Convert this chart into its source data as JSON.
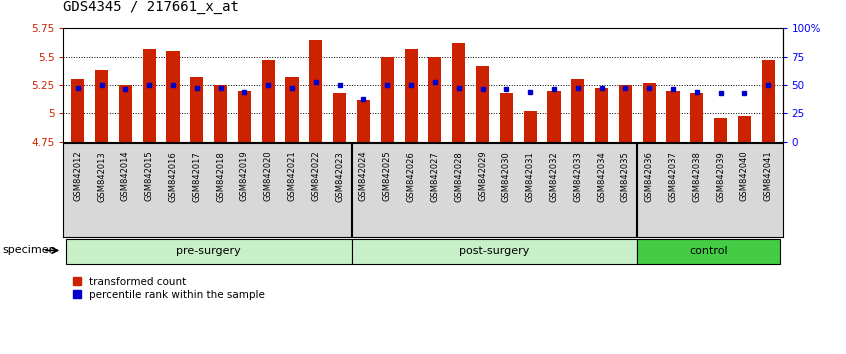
{
  "title": "GDS4345 / 217661_x_at",
  "samples": [
    "GSM842012",
    "GSM842013",
    "GSM842014",
    "GSM842015",
    "GSM842016",
    "GSM842017",
    "GSM842018",
    "GSM842019",
    "GSM842020",
    "GSM842021",
    "GSM842022",
    "GSM842023",
    "GSM842024",
    "GSM842025",
    "GSM842026",
    "GSM842027",
    "GSM842028",
    "GSM842029",
    "GSM842030",
    "GSM842031",
    "GSM842032",
    "GSM842033",
    "GSM842034",
    "GSM842035",
    "GSM842036",
    "GSM842037",
    "GSM842038",
    "GSM842039",
    "GSM842040",
    "GSM842041"
  ],
  "red_values": [
    5.3,
    5.38,
    5.25,
    5.57,
    5.55,
    5.32,
    5.25,
    5.2,
    5.47,
    5.32,
    5.65,
    5.18,
    5.12,
    5.5,
    5.57,
    5.5,
    5.62,
    5.42,
    5.18,
    5.02,
    5.2,
    5.3,
    5.22,
    5.25,
    5.27,
    5.2,
    5.18,
    4.96,
    4.98,
    5.47
  ],
  "blue_percentiles": [
    47,
    50,
    46,
    50,
    50,
    47,
    47,
    44,
    50,
    47,
    53,
    50,
    38,
    50,
    50,
    53,
    47,
    46,
    46,
    44,
    46,
    47,
    47,
    47,
    47,
    46,
    44,
    43,
    43,
    50
  ],
  "ymin": 4.75,
  "ymax": 5.75,
  "yticks": [
    4.75,
    5.0,
    5.25,
    5.5,
    5.75
  ],
  "ytick_labels": [
    "4.75",
    "5",
    "5.25",
    "5.5",
    "5.75"
  ],
  "right_yticks": [
    0,
    25,
    50,
    75,
    100
  ],
  "right_ytick_labels": [
    "0",
    "25",
    "50",
    "75",
    "100%"
  ],
  "bar_color": "#cc2200",
  "dot_color": "#0000cc",
  "group_configs": [
    {
      "start": 0,
      "end": 12,
      "label": "pre-surgery",
      "facecolor": "#c8f0c8"
    },
    {
      "start": 12,
      "end": 24,
      "label": "post-surgery",
      "facecolor": "#c8f0c8"
    },
    {
      "start": 24,
      "end": 30,
      "label": "control",
      "facecolor": "#44cc44"
    }
  ],
  "xtick_bg": "#d8d8d8",
  "grid_yticks": [
    5.0,
    5.25,
    5.5
  ],
  "title_fontsize": 10,
  "axis_fontsize": 7.5,
  "group_fontsize": 8,
  "legend_fontsize": 7.5,
  "tick_fontsize": 6
}
